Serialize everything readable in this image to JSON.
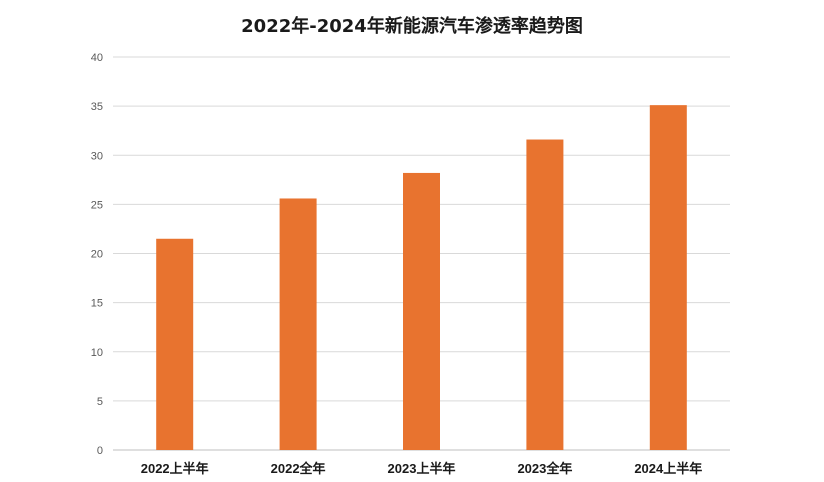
{
  "chart_data": {
    "type": "bar",
    "title": "2022年-2024年新能源汽车渗透率趋势图",
    "categories": [
      "2022上半年",
      "2022全年",
      "2023上半年",
      "2023全年",
      "2024上半年"
    ],
    "values": [
      21.5,
      25.6,
      28.2,
      31.6,
      35.1
    ],
    "xlabel": "",
    "ylabel": "",
    "ylim": [
      0,
      40
    ],
    "yticks": [
      "0",
      "5",
      "10",
      "15",
      "20",
      "25",
      "30",
      "35",
      "40"
    ],
    "grid": true,
    "legend": "none",
    "bar_color": "#E8732F",
    "grid_color": "#d9d9d9",
    "tick_color": "#595959",
    "category_color": "#1a1a1a"
  }
}
